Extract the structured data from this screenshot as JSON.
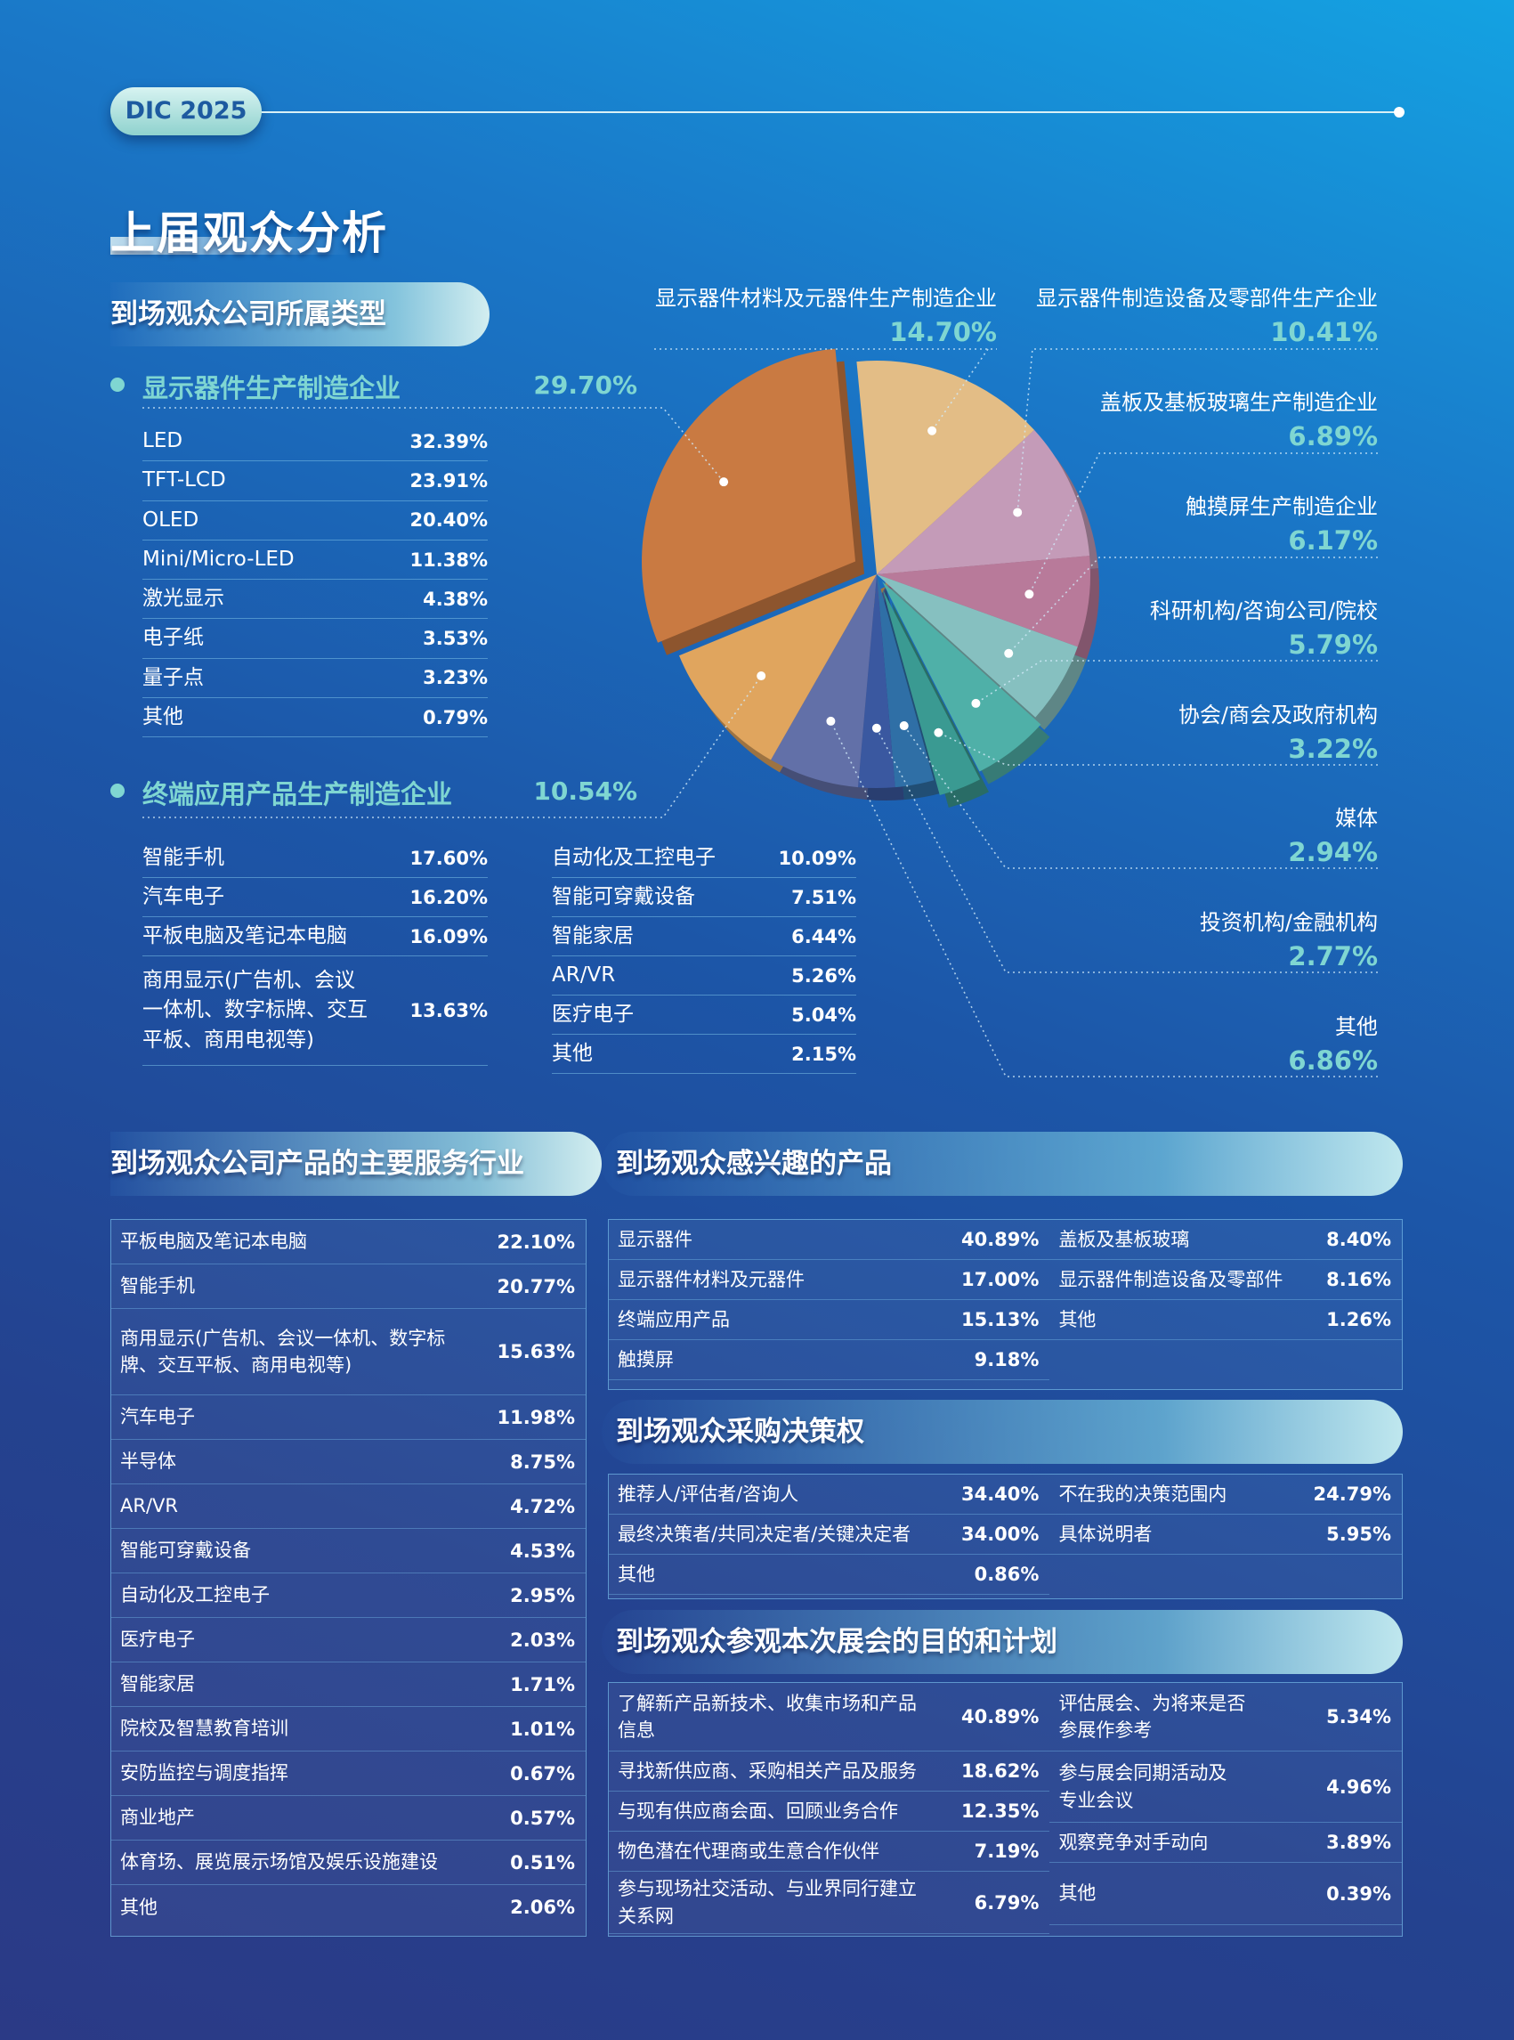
{
  "header": {
    "badge": "DIC 2025"
  },
  "page_title": "上届观众分析",
  "company_types": {
    "heading": "到场观众公司所属类型",
    "display_makers": {
      "title": "显示器件生产制造企业",
      "pct": "29.70%",
      "items": [
        {
          "label": "LED",
          "value": "32.39%"
        },
        {
          "label": "TFT-LCD",
          "value": "23.91%"
        },
        {
          "label": "OLED",
          "value": "20.40%"
        },
        {
          "label": "Mini/Micro-LED",
          "value": "11.38%"
        },
        {
          "label": "激光显示",
          "value": "4.38%"
        },
        {
          "label": "电子纸",
          "value": "3.53%"
        },
        {
          "label": "量子点",
          "value": "3.23%"
        },
        {
          "label": "其他",
          "value": "0.79%"
        }
      ]
    },
    "terminal_makers": {
      "title": "终端应用产品生产制造企业",
      "pct": "10.54%",
      "col1": [
        {
          "label": "智能手机",
          "value": "17.60%"
        },
        {
          "label": "汽车电子",
          "value": "16.20%"
        },
        {
          "label": "平板电脑及笔记本电脑",
          "value": "16.09%"
        },
        {
          "label": "商用显示(广告机、会议\n一体机、数字标牌、交互\n平板、商用电视等)",
          "value": "13.63%"
        }
      ],
      "col2": [
        {
          "label": "自动化及工控电子",
          "value": "10.09%"
        },
        {
          "label": "智能可穿戴设备",
          "value": "7.51%"
        },
        {
          "label": "智能家居",
          "value": "6.44%"
        },
        {
          "label": "AR/VR",
          "value": "5.26%"
        },
        {
          "label": "医疗电子",
          "value": "5.04%"
        },
        {
          "label": "其他",
          "value": "2.15%"
        }
      ]
    }
  },
  "chart_data": {
    "type": "pie",
    "series": [
      {
        "values": [
          29.7,
          10.54,
          14.7,
          10.41,
          6.89,
          6.17,
          5.79,
          3.22,
          2.94,
          2.77,
          6.86
        ]
      }
    ],
    "categories": [
      "显示器件生产制造企业",
      "终端应用产品生产制造企业",
      "显示器件材料及元器件生产制造企业",
      "显示器件制造设备及零部件生产企业",
      "盖板及基板玻璃生产制造企业",
      "触摸屏生产制造企业",
      "科研机构/咨询公司/院校",
      "协会/商会及政府机构",
      "媒体",
      "投资机构/金融机构",
      "其他"
    ],
    "labels": [
      {
        "name": "显示器件材料及元器件生产制造企业",
        "pct": "14.70%"
      },
      {
        "name": "显示器件制造设备及零部件生产企业",
        "pct": "10.41%"
      },
      {
        "name": "盖板及基板玻璃生产制造企业",
        "pct": "6.89%"
      },
      {
        "name": "触摸屏生产制造企业",
        "pct": "6.17%"
      },
      {
        "name": "科研机构/咨询公司/院校",
        "pct": "5.79%"
      },
      {
        "name": "协会/商会及政府机构",
        "pct": "3.22%"
      },
      {
        "name": "媒体",
        "pct": "2.94%"
      },
      {
        "name": "投资机构/金融机构",
        "pct": "2.77%"
      },
      {
        "name": "其他",
        "pct": "6.86%"
      }
    ],
    "colors": [
      "#c97a42",
      "#e0a55e",
      "#e3bd86",
      "#c49bb8",
      "#b87a9a",
      "#86c0c0",
      "#4fb0a8",
      "#3a9a92",
      "#2f6fa6",
      "#3a58a0",
      "#6270a8"
    ]
  },
  "industries": {
    "heading": "到场观众公司产品的主要服务行业",
    "items": [
      {
        "label": "平板电脑及笔记本电脑",
        "value": "22.10%"
      },
      {
        "label": "智能手机",
        "value": "20.77%"
      },
      {
        "label": "商用显示(广告机、会议一体机、数字标\n牌、交互平板、商用电视等)",
        "value": "15.63%"
      },
      {
        "label": "汽车电子",
        "value": "11.98%"
      },
      {
        "label": "半导体",
        "value": "8.75%"
      },
      {
        "label": "AR/VR",
        "value": "4.72%"
      },
      {
        "label": "智能可穿戴设备",
        "value": "4.53%"
      },
      {
        "label": "自动化及工控电子",
        "value": "2.95%"
      },
      {
        "label": "医疗电子",
        "value": "2.03%"
      },
      {
        "label": "智能家居",
        "value": "1.71%"
      },
      {
        "label": "院校及智慧教育培训",
        "value": "1.01%"
      },
      {
        "label": "安防监控与调度指挥",
        "value": "0.67%"
      },
      {
        "label": "商业地产",
        "value": "0.57%"
      },
      {
        "label": "体育场、展览展示场馆及娱乐设施建设",
        "value": "0.51%"
      },
      {
        "label": "其他",
        "value": "2.06%"
      }
    ]
  },
  "interests": {
    "heading": "到场观众感兴趣的产品",
    "col1": [
      {
        "label": "显示器件",
        "value": "40.89%"
      },
      {
        "label": "显示器件材料及元器件",
        "value": "17.00%"
      },
      {
        "label": "终端应用产品",
        "value": "15.13%"
      },
      {
        "label": "触摸屏",
        "value": "9.18%"
      }
    ],
    "col2": [
      {
        "label": "盖板及基板玻璃",
        "value": "8.40%"
      },
      {
        "label": "显示器件制造设备及零部件",
        "value": "8.16%"
      },
      {
        "label": "其他",
        "value": "1.26%"
      }
    ]
  },
  "decision": {
    "heading": "到场观众采购决策权",
    "col1": [
      {
        "label": "推荐人/评估者/咨询人",
        "value": "34.40%"
      },
      {
        "label": "最终决策者/共同决定者/关键决定者",
        "value": "34.00%"
      },
      {
        "label": "其他",
        "value": "0.86%"
      }
    ],
    "col2": [
      {
        "label": "不在我的决策范围内",
        "value": "24.79%"
      },
      {
        "label": "具体说明者",
        "value": "5.95%"
      }
    ]
  },
  "purpose": {
    "heading": "到场观众参观本次展会的目的和计划",
    "col1": [
      {
        "label": "了解新产品新技术、收集市场和产品\n信息",
        "value": "40.89%"
      },
      {
        "label": "寻找新供应商、采购相关产品及服务",
        "value": "18.62%"
      },
      {
        "label": "与现有供应商会面、回顾业务合作",
        "value": "12.35%"
      },
      {
        "label": "物色潜在代理商或生意合作伙伴",
        "value": "7.19%"
      },
      {
        "label": "参与现场社交活动、与业界同行建立\n关系网",
        "value": "6.79%"
      }
    ],
    "col2": [
      {
        "label": "评估展会、为将来是否\n参展作参考",
        "value": "5.34%"
      },
      {
        "label": "参与展会同期活动及\n专业会议",
        "value": "4.96%"
      },
      {
        "label": "观察竞争对手动向",
        "value": "3.89%"
      },
      {
        "label": "其他",
        "value": "0.39%"
      }
    ]
  }
}
